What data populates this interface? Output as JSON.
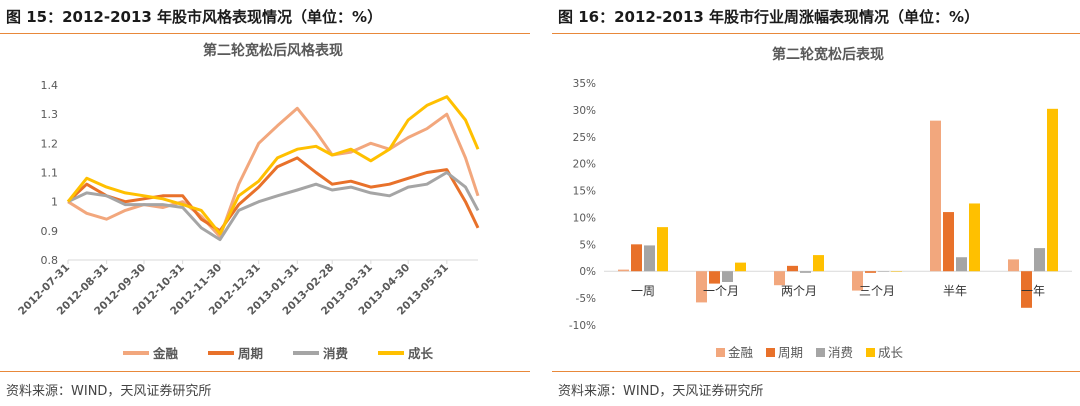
{
  "left": {
    "fig_title": "图 15：2012-2013 年股市风格表现情况（单位：%）",
    "source": "资料来源：WIND，天风证券研究所"
  },
  "right": {
    "fig_title": "图 16：2012-2013 年股市行业周涨幅表现情况（单位：%）",
    "source": "资料来源：WIND，天风证券研究所"
  },
  "colors": {
    "金融": "#f2a77d",
    "周期": "#e8712a",
    "消费": "#a5a5a5",
    "成长": "#ffc000",
    "axis": "#d9d9d9",
    "rule": "#e8883a"
  },
  "chart_data": [
    {
      "type": "line",
      "title": "第二轮宽松后风格表现",
      "xlabel": "",
      "ylabel": "",
      "ylim": [
        0.8,
        1.4
      ],
      "yticks": [
        "0.8",
        "0.9",
        "1",
        "1.1",
        "1.2",
        "1.3",
        "1.4"
      ],
      "x_tick_labels": [
        "2012-07-31",
        "2012-08-31",
        "2012-09-30",
        "2012-10-31",
        "2012-11-30",
        "2012-12-31",
        "2013-01-31",
        "2013-02-28",
        "2013-03-31",
        "2013-04-30",
        "2013-05-31"
      ],
      "x": [
        "2012-07-31",
        "2012-08-15",
        "2012-08-31",
        "2012-09-15",
        "2012-09-30",
        "2012-10-15",
        "2012-10-31",
        "2012-11-15",
        "2012-11-30",
        "2012-12-15",
        "2012-12-31",
        "2013-01-15",
        "2013-01-31",
        "2013-02-15",
        "2013-02-28",
        "2013-03-15",
        "2013-03-31",
        "2013-04-15",
        "2013-04-30",
        "2013-05-15",
        "2013-05-31",
        "2013-06-15",
        "2013-06-25"
      ],
      "legend_position": "bottom",
      "series": [
        {
          "name": "金融",
          "values": [
            1.0,
            0.96,
            0.94,
            0.97,
            0.99,
            0.98,
            1.0,
            0.95,
            0.88,
            1.06,
            1.2,
            1.26,
            1.32,
            1.24,
            1.16,
            1.17,
            1.2,
            1.18,
            1.22,
            1.25,
            1.3,
            1.15,
            1.02
          ]
        },
        {
          "name": "周期",
          "values": [
            1.0,
            1.06,
            1.02,
            1.0,
            1.01,
            1.02,
            1.02,
            0.94,
            0.9,
            0.99,
            1.05,
            1.12,
            1.15,
            1.1,
            1.06,
            1.07,
            1.05,
            1.06,
            1.08,
            1.1,
            1.11,
            1.0,
            0.91
          ]
        },
        {
          "name": "消费",
          "values": [
            1.0,
            1.03,
            1.02,
            0.99,
            0.99,
            0.99,
            0.98,
            0.91,
            0.87,
            0.97,
            1.0,
            1.02,
            1.04,
            1.06,
            1.04,
            1.05,
            1.03,
            1.02,
            1.05,
            1.06,
            1.1,
            1.05,
            0.97
          ]
        },
        {
          "name": "成长",
          "values": [
            1.0,
            1.08,
            1.05,
            1.03,
            1.02,
            1.01,
            0.99,
            0.97,
            0.89,
            1.02,
            1.07,
            1.15,
            1.18,
            1.19,
            1.16,
            1.18,
            1.14,
            1.18,
            1.28,
            1.33,
            1.36,
            1.28,
            1.18
          ]
        }
      ]
    },
    {
      "type": "bar",
      "title": "第二轮宽松后表现",
      "xlabel": "",
      "ylabel": "",
      "ylim": [
        -10,
        35
      ],
      "yticks": [
        "35%",
        "30%",
        "25%",
        "20%",
        "15%",
        "10%",
        "5%",
        "0%",
        "-5%",
        "-10%"
      ],
      "categories": [
        "一周",
        "一个月",
        "两个月",
        "三个月",
        "半年",
        "一年"
      ],
      "legend_position": "bottom",
      "series": [
        {
          "name": "金融",
          "values": [
            0.3,
            -5.8,
            -2.6,
            -3.6,
            28.0,
            2.2
          ]
        },
        {
          "name": "周期",
          "values": [
            5.0,
            -2.3,
            1.0,
            -0.3,
            11.0,
            -6.8
          ]
        },
        {
          "name": "消费",
          "values": [
            4.8,
            -2.0,
            -0.3,
            0.0,
            2.6,
            4.3
          ]
        },
        {
          "name": "成长",
          "values": [
            8.2,
            1.6,
            3.0,
            0.0,
            12.6,
            30.2
          ]
        }
      ]
    }
  ]
}
